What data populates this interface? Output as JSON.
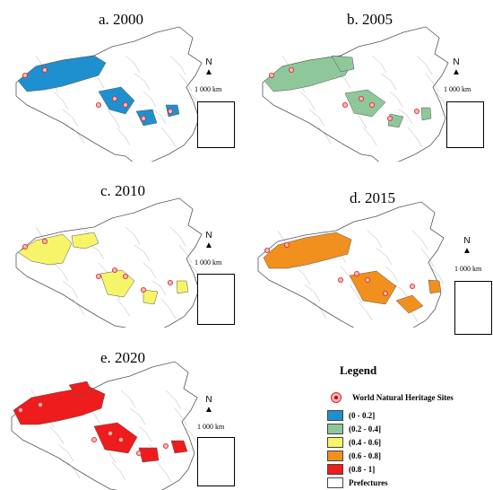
{
  "panels": [
    {
      "id": "a",
      "title": "a. 2000",
      "fill": "#1e90d0"
    },
    {
      "id": "b",
      "title": "b. 2005",
      "fill": "#8ec89a"
    },
    {
      "id": "c",
      "title": "c. 2010",
      "fill": "#f6f56a"
    },
    {
      "id": "d",
      "title": "d. 2015",
      "fill": "#f2901e"
    },
    {
      "id": "e",
      "title": "e. 2020",
      "fill": "#ee1c1c"
    }
  ],
  "north_label": "N",
  "scale_label": "1 000 km",
  "legend": {
    "title": "Legend",
    "site_label": "World Natural Heritage Sites",
    "classes": [
      {
        "label": "(0 - 0.2]",
        "color": "#1e90d0"
      },
      {
        "label": "(0.2 - 0.4]",
        "color": "#8ec89a"
      },
      {
        "label": "(0.4 - 0.6]",
        "color": "#f6f56a"
      },
      {
        "label": "(0.6 - 0.8]",
        "color": "#f2901e"
      },
      {
        "label": "(0.8 - 1]",
        "color": "#ee1c1c"
      }
    ],
    "prefectures_label": "Prefectures",
    "prefectures_color": "#ffffff"
  }
}
